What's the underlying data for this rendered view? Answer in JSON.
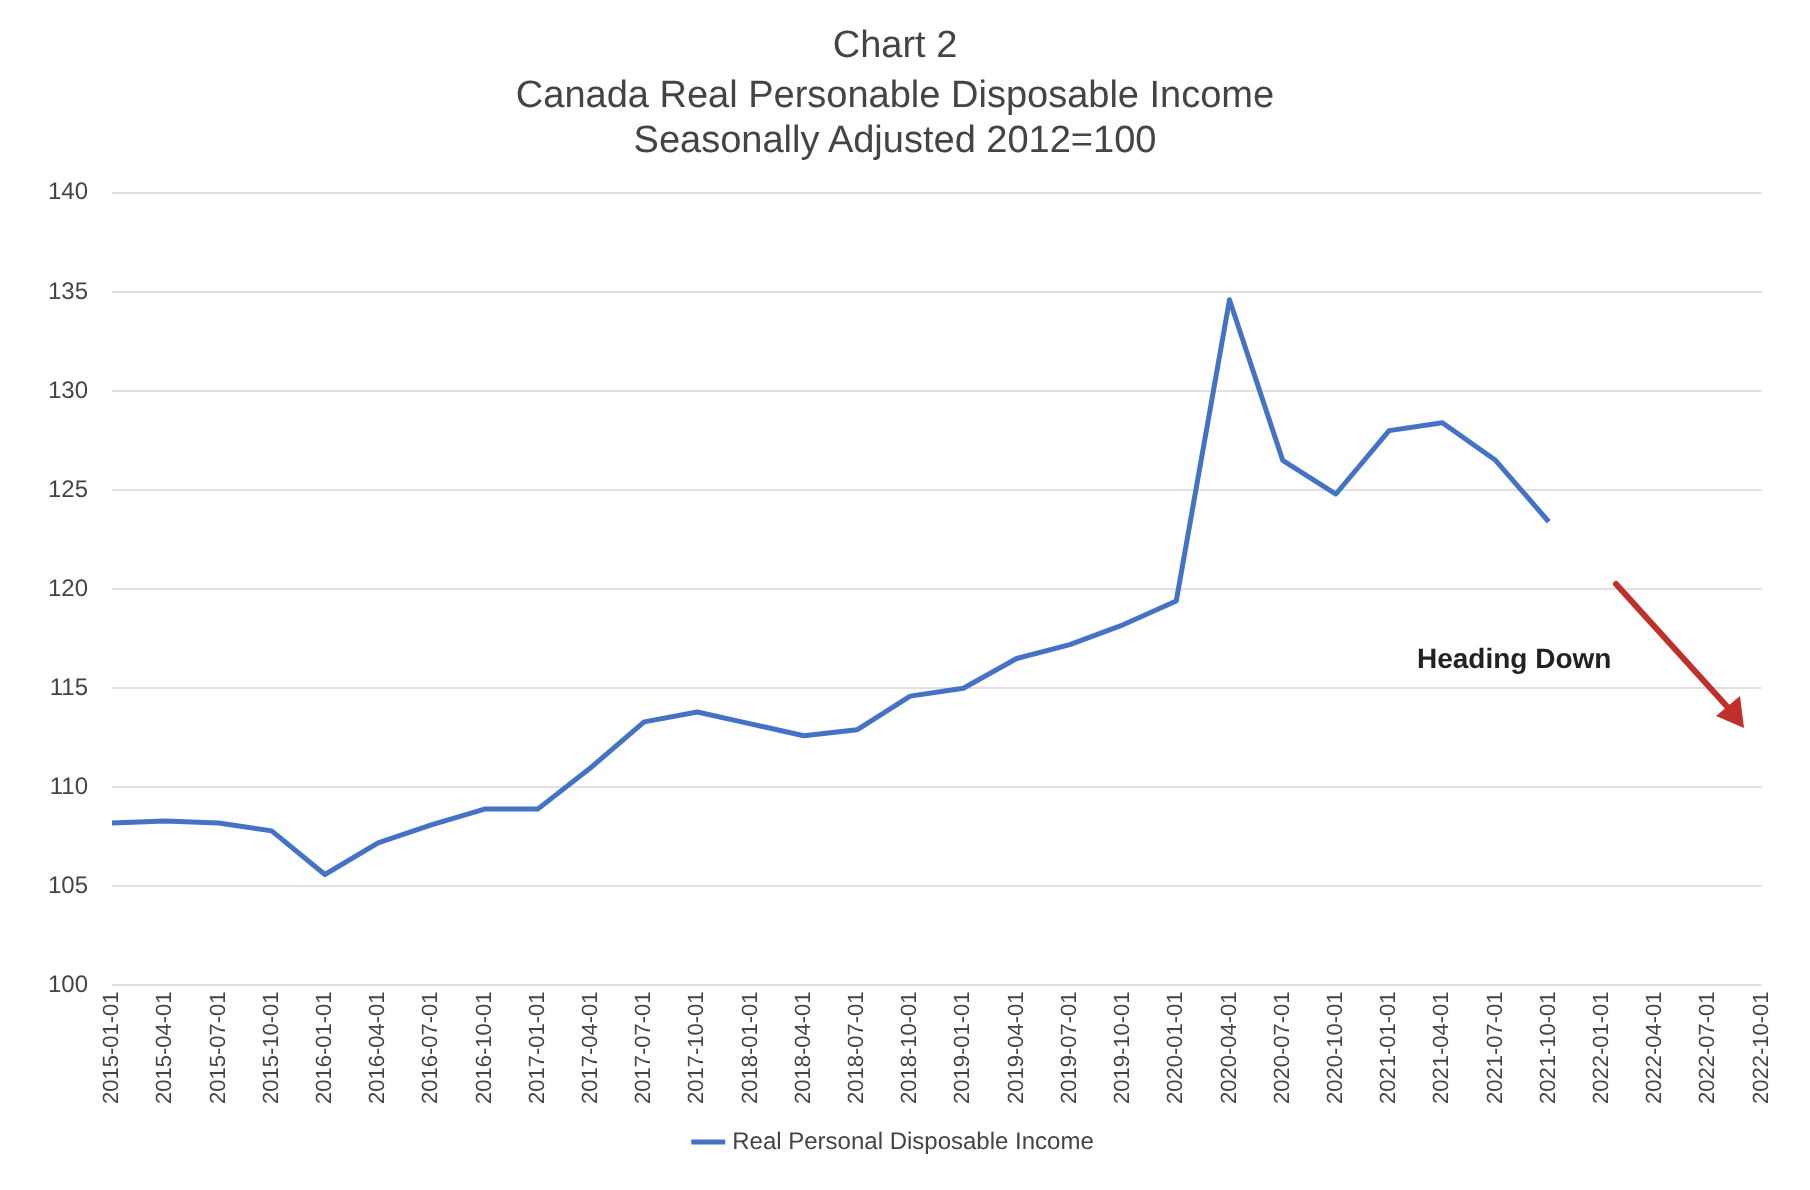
{
  "chart_data": {
    "type": "line",
    "title": "Chart 2",
    "subtitle": "Canada Real Personable Disposable Income\nSeasonally Adjusted 2012=100",
    "categories": [
      "2015-01-01",
      "2015-04-01",
      "2015-07-01",
      "2015-10-01",
      "2016-01-01",
      "2016-04-01",
      "2016-07-01",
      "2016-10-01",
      "2017-01-01",
      "2017-04-01",
      "2017-07-01",
      "2017-10-01",
      "2018-01-01",
      "2018-04-01",
      "2018-07-01",
      "2018-10-01",
      "2019-01-01",
      "2019-04-01",
      "2019-07-01",
      "2019-10-01",
      "2020-01-01",
      "2020-04-01",
      "2020-07-01",
      "2020-10-01",
      "2021-01-01",
      "2021-04-01",
      "2021-07-01",
      "2021-10-01",
      "2022-01-01",
      "2022-04-01",
      "2022-07-01",
      "2022-10-01"
    ],
    "series": [
      {
        "name": "Real Personal Disposable Income",
        "color": "#4472c4",
        "values": [
          108.2,
          108.3,
          108.2,
          107.8,
          105.6,
          107.2,
          108.1,
          108.9,
          108.9,
          111.0,
          113.3,
          113.8,
          113.2,
          112.6,
          112.9,
          114.6,
          115.0,
          116.5,
          117.2,
          118.2,
          119.4,
          134.6,
          126.5,
          124.8,
          128.0,
          128.4,
          126.5,
          123.4,
          null,
          null,
          null,
          null
        ]
      }
    ],
    "ylim": [
      100,
      140
    ],
    "yticks": [
      100,
      105,
      110,
      115,
      120,
      125,
      130,
      135,
      140
    ],
    "grid": "y",
    "legend": "bottom",
    "marker": "none",
    "line_style": "solid",
    "annotations": [
      "Heading Down"
    ]
  }
}
